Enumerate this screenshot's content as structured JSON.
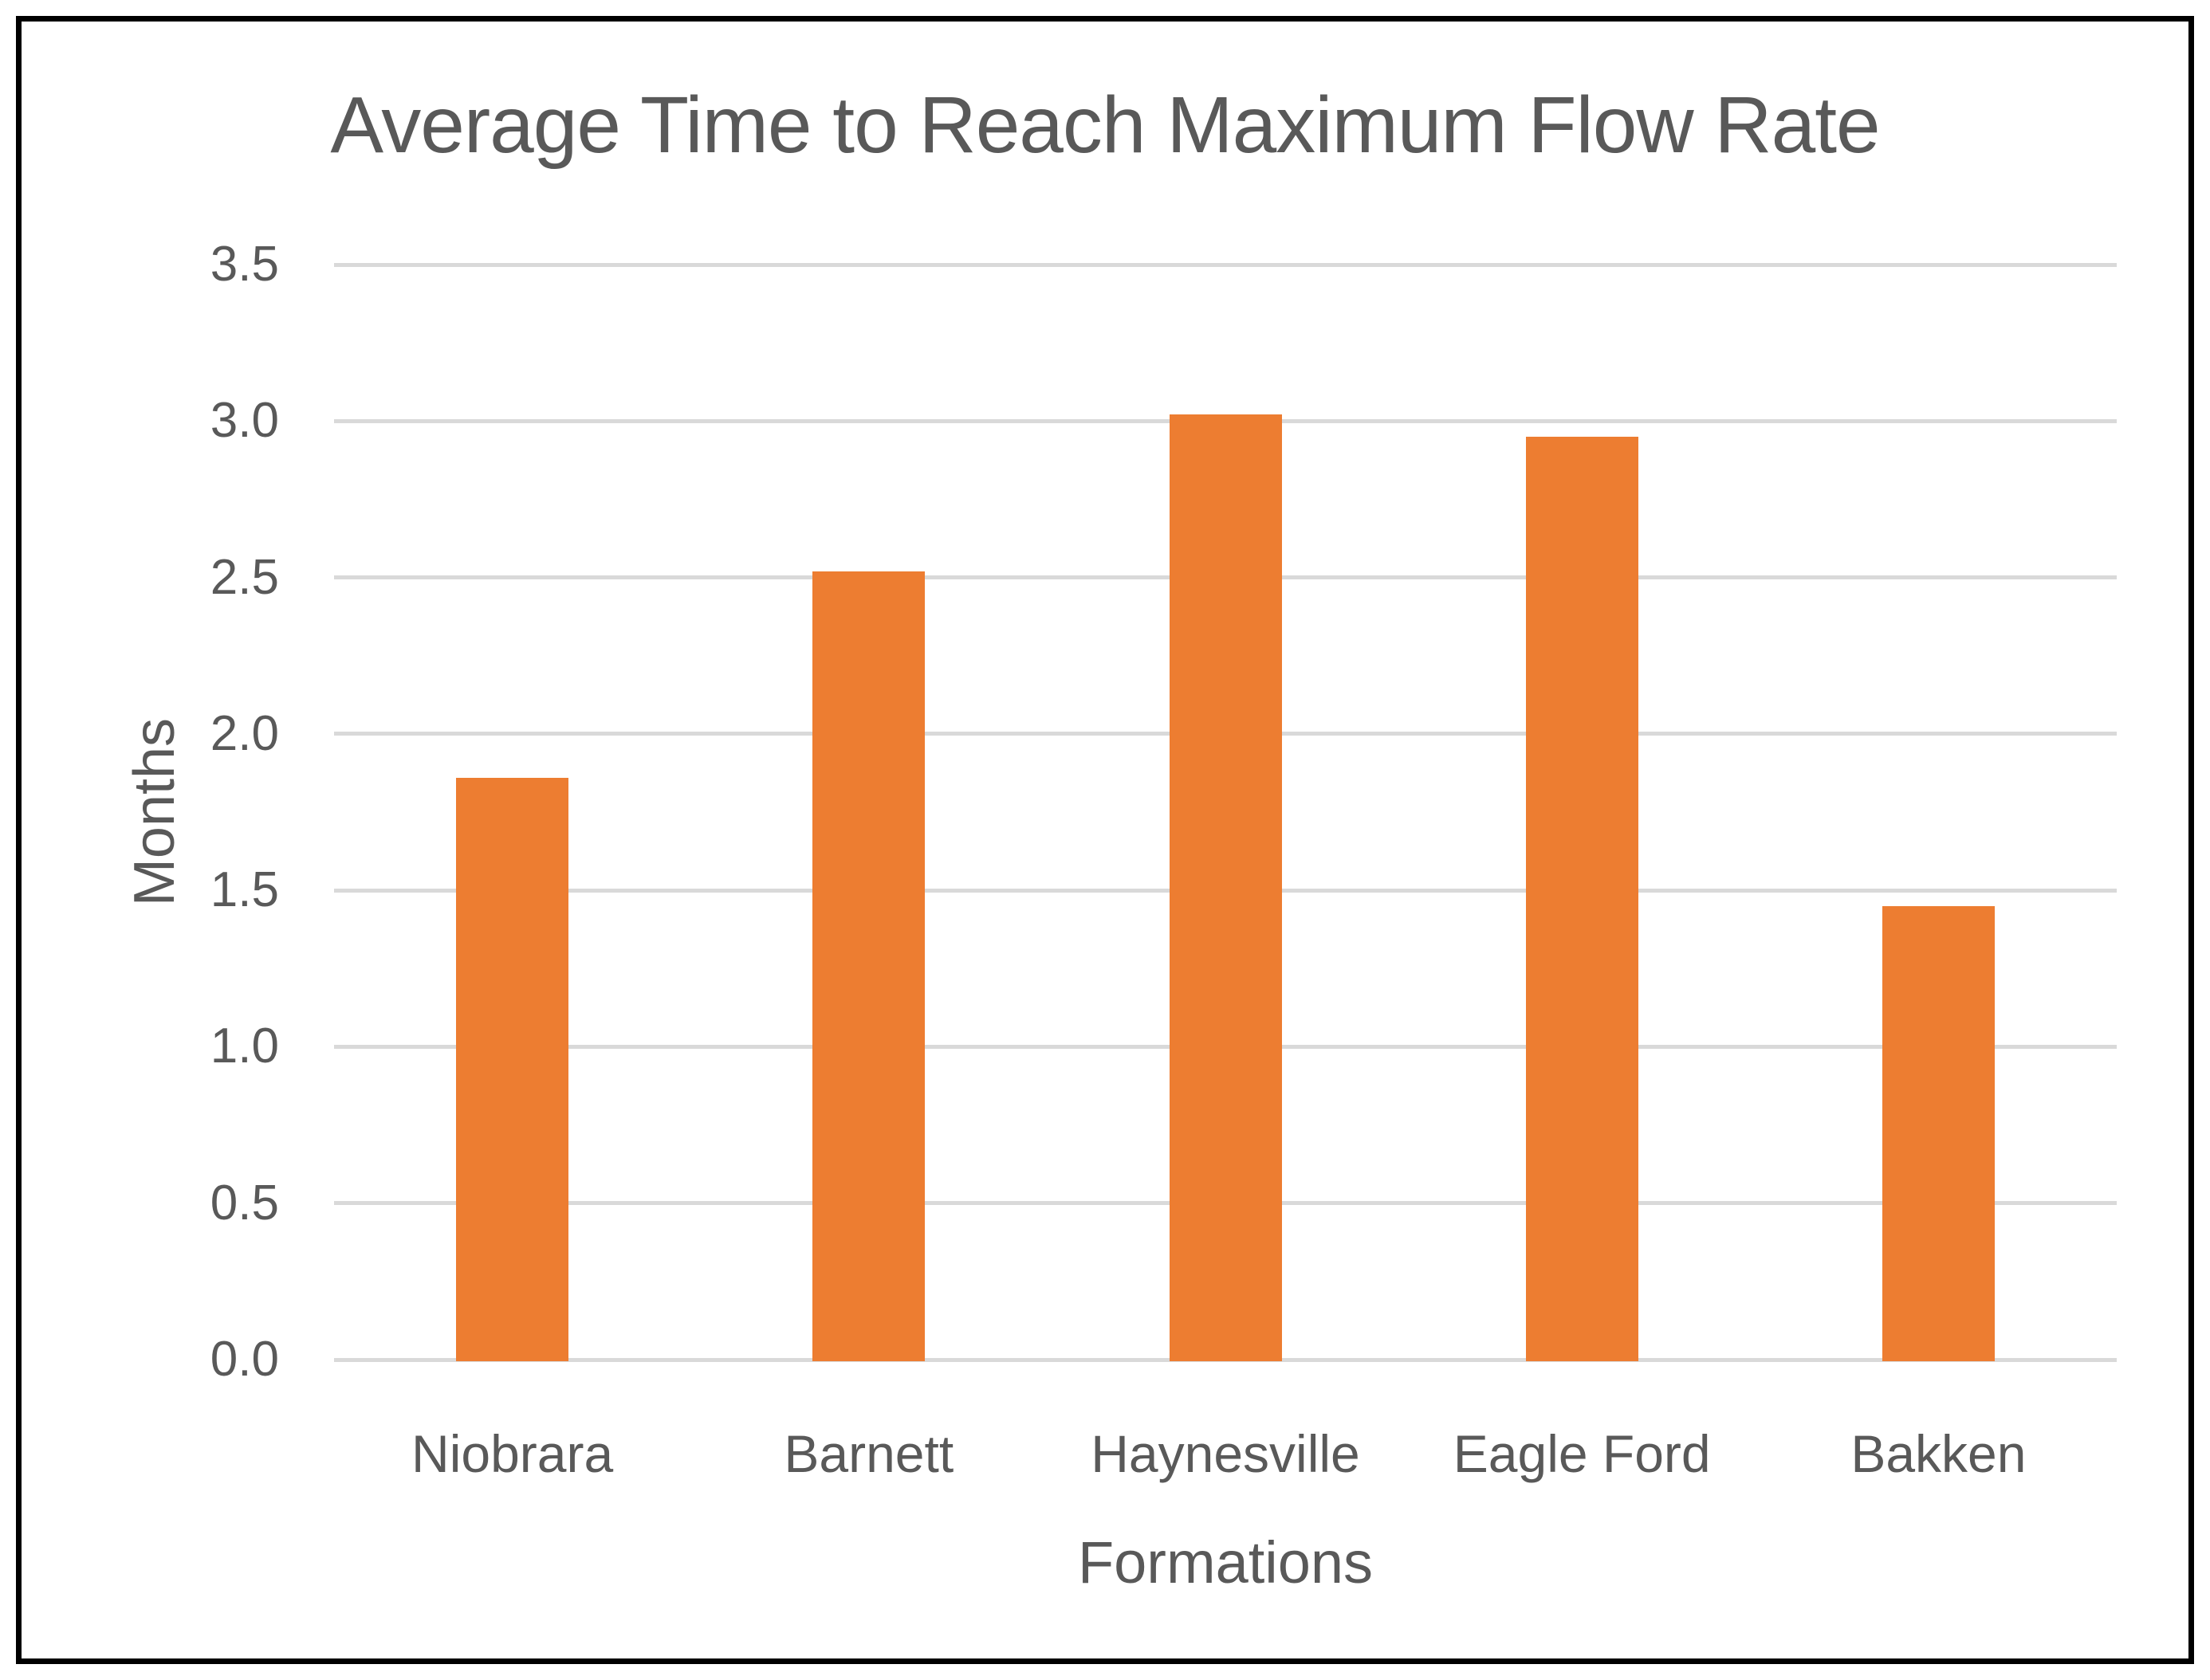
{
  "chart_data": {
    "type": "bar",
    "title": "Average Time to Reach Maximum Flow Rate",
    "categories": [
      "Niobrara",
      "Barnett",
      "Haynesville",
      "Eagle Ford",
      "Bakken"
    ],
    "values": [
      1.86,
      2.52,
      3.02,
      2.95,
      1.45
    ],
    "xlabel": "Formations",
    "ylabel": "Months",
    "ylim": [
      0,
      3.5
    ],
    "ytick_step": 0.5,
    "ytick_labels": [
      "0.0",
      "0.5",
      "1.0",
      "1.5",
      "2.0",
      "2.5",
      "3.0",
      "3.5"
    ],
    "grid": true,
    "legend": false,
    "colors": {
      "bar": "#ED7D31",
      "text": "#595959",
      "gridline": "#D9D9D9",
      "frame": "#000000",
      "background": "#FFFFFF"
    }
  }
}
